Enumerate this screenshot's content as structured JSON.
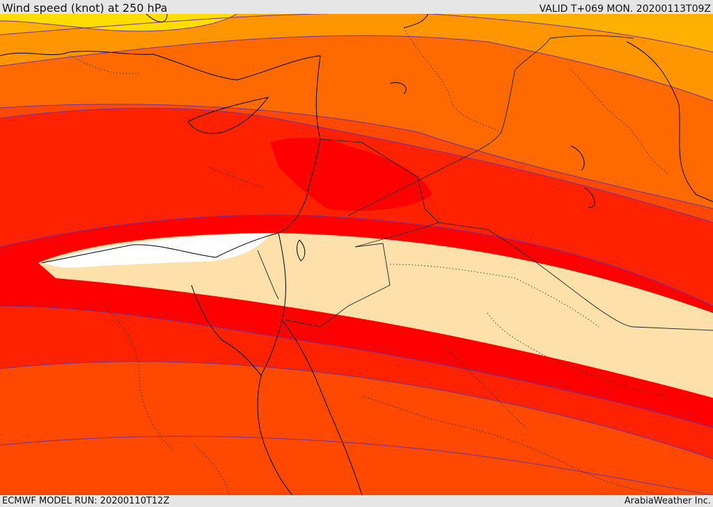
{
  "header": {
    "title": "Wind speed (knot) at 250 hPa",
    "valid_time": "VALID T+069 MON. 20200113T09Z"
  },
  "footer": {
    "model_run": "ECMWF MODEL RUN: 20200110T12Z",
    "credit": "ArabiaWeather Inc."
  },
  "map": {
    "region": "Eastern Mediterranean / Middle East",
    "colors": {
      "band_yellow": "#ffdd00",
      "band_amber": "#ffb000",
      "band_orange": "#ff9500",
      "band_dark_orange": "#ff6a00",
      "band_red_orange": "#ff4800",
      "band_scarlet": "#ff2200",
      "band_red": "#ff0000",
      "band_pale": "#fde0aa",
      "band_white": "#ffffff",
      "contour": "#7030a0",
      "coastline": "#000000",
      "border": "#222222"
    }
  }
}
